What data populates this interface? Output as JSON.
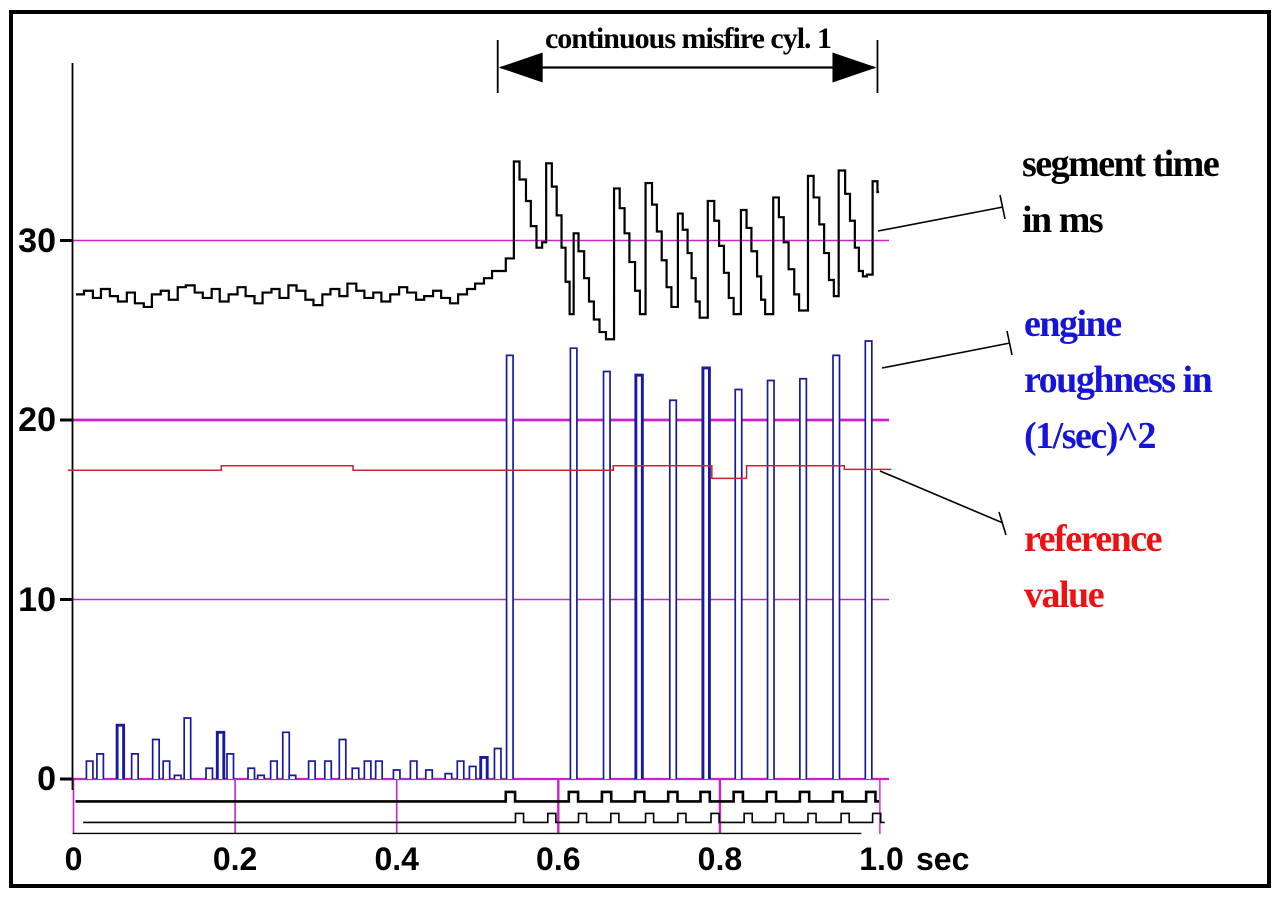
{
  "annotation": {
    "text": "continuous misfire cyl. 1"
  },
  "axes": {
    "x_unit": "sec",
    "x_ticks": [
      {
        "t": 0,
        "label": "0"
      },
      {
        "t": 0.2,
        "label": "0.2"
      },
      {
        "t": 0.4,
        "label": "0.4"
      },
      {
        "t": 0.6,
        "label": "0.6"
      },
      {
        "t": 0.8,
        "label": "0.8"
      },
      {
        "t": 1.0,
        "label": "1.0"
      }
    ],
    "y_ticks": [
      {
        "v": 0,
        "label": "0"
      },
      {
        "v": 10,
        "label": "10"
      },
      {
        "v": 20,
        "label": "20"
      },
      {
        "v": 30,
        "label": "30"
      }
    ]
  },
  "labels": [
    {
      "id": "segment-time",
      "color": "#000000",
      "lines": [
        "segment time",
        "in ms"
      ]
    },
    {
      "id": "engine-roughness",
      "color": "#1414dd",
      "lines": [
        "engine",
        "roughness in",
        "(1/sec)^2"
      ]
    },
    {
      "id": "reference-value",
      "color": "#ee1111",
      "lines": [
        "reference",
        "value"
      ]
    }
  ],
  "colors": {
    "grid": "#cc22cc",
    "segment_time": "#000000",
    "engine_roughness": "#1a1a9e",
    "reference": "#cc2233",
    "trigger_trace": "#000000"
  },
  "chart_data": {
    "type": "line",
    "title": "",
    "xlabel": "sec",
    "annotations": [
      "continuous misfire cyl. 1"
    ],
    "annotation_span_t": [
      0.525,
      0.995
    ],
    "x_range": [
      0,
      1.0
    ],
    "y_range": [
      -3.2,
      38
    ],
    "grid": {
      "y_values": [
        0,
        10,
        20,
        30
      ],
      "y_widths": [
        2.2,
        1.4,
        2.8,
        1.6
      ],
      "x_tick_marks_below_zero": [
        {
          "t": 0.0,
          "w": 1.6
        },
        {
          "t": 0.2,
          "w": 1.6
        },
        {
          "t": 0.4,
          "w": 1.6
        },
        {
          "t": 0.6,
          "w": 2.4
        },
        {
          "t": 0.8,
          "w": 2.4
        },
        {
          "t": 0.998,
          "w": 1.4
        }
      ]
    },
    "series": [
      {
        "name": "segment time in ms",
        "type": "step",
        "color": "#000000",
        "end_t": 0.997,
        "steps": [
          [
            0.003,
            27.0
          ],
          [
            0.013,
            27.2
          ],
          [
            0.024,
            26.8
          ],
          [
            0.034,
            27.3
          ],
          [
            0.045,
            26.9
          ],
          [
            0.055,
            26.6
          ],
          [
            0.066,
            27.1
          ],
          [
            0.076,
            26.5
          ],
          [
            0.087,
            26.3
          ],
          [
            0.097,
            27.0
          ],
          [
            0.108,
            27.2
          ],
          [
            0.118,
            26.7
          ],
          [
            0.129,
            27.4
          ],
          [
            0.139,
            27.5
          ],
          [
            0.15,
            27.1
          ],
          [
            0.16,
            26.8
          ],
          [
            0.171,
            27.3
          ],
          [
            0.181,
            26.6
          ],
          [
            0.192,
            27.0
          ],
          [
            0.203,
            27.4
          ],
          [
            0.213,
            26.9
          ],
          [
            0.224,
            26.5
          ],
          [
            0.234,
            27.1
          ],
          [
            0.245,
            27.3
          ],
          [
            0.255,
            26.8
          ],
          [
            0.266,
            27.5
          ],
          [
            0.276,
            27.2
          ],
          [
            0.287,
            26.7
          ],
          [
            0.297,
            26.4
          ],
          [
            0.308,
            27.0
          ],
          [
            0.318,
            27.3
          ],
          [
            0.329,
            26.9
          ],
          [
            0.339,
            27.6
          ],
          [
            0.35,
            27.2
          ],
          [
            0.36,
            26.8
          ],
          [
            0.371,
            27.1
          ],
          [
            0.381,
            26.6
          ],
          [
            0.392,
            27.0
          ],
          [
            0.403,
            27.4
          ],
          [
            0.413,
            27.1
          ],
          [
            0.424,
            26.7
          ],
          [
            0.434,
            26.9
          ],
          [
            0.445,
            27.2
          ],
          [
            0.455,
            26.8
          ],
          [
            0.466,
            26.5
          ],
          [
            0.476,
            27.0
          ],
          [
            0.487,
            27.3
          ],
          [
            0.497,
            27.6
          ],
          [
            0.508,
            27.9
          ],
          [
            0.518,
            28.3
          ],
          [
            0.535,
            29.0
          ],
          [
            0.545,
            34.4
          ],
          [
            0.552,
            33.4
          ],
          [
            0.56,
            32.2
          ],
          [
            0.566,
            30.8
          ],
          [
            0.573,
            29.6
          ],
          [
            0.58,
            29.9
          ],
          [
            0.585,
            34.3
          ],
          [
            0.592,
            33.0
          ],
          [
            0.598,
            31.4
          ],
          [
            0.604,
            29.6
          ],
          [
            0.609,
            27.7
          ],
          [
            0.614,
            25.9
          ],
          [
            0.619,
            30.4
          ],
          [
            0.625,
            29.4
          ],
          [
            0.632,
            27.9
          ],
          [
            0.638,
            26.6
          ],
          [
            0.644,
            25.6
          ],
          [
            0.651,
            24.9
          ],
          [
            0.659,
            24.5
          ],
          [
            0.669,
            32.9
          ],
          [
            0.676,
            31.8
          ],
          [
            0.682,
            30.4
          ],
          [
            0.688,
            28.8
          ],
          [
            0.695,
            27.2
          ],
          [
            0.701,
            25.9
          ],
          [
            0.708,
            33.2
          ],
          [
            0.716,
            32.0
          ],
          [
            0.722,
            30.5
          ],
          [
            0.728,
            28.9
          ],
          [
            0.734,
            27.4
          ],
          [
            0.74,
            26.3
          ],
          [
            0.748,
            31.5
          ],
          [
            0.754,
            30.6
          ],
          [
            0.76,
            29.3
          ],
          [
            0.765,
            27.9
          ],
          [
            0.77,
            26.6
          ],
          [
            0.775,
            25.7
          ],
          [
            0.785,
            32.2
          ],
          [
            0.793,
            31.1
          ],
          [
            0.799,
            29.7
          ],
          [
            0.805,
            28.2
          ],
          [
            0.811,
            26.8
          ],
          [
            0.817,
            25.9
          ],
          [
            0.826,
            31.7
          ],
          [
            0.833,
            30.7
          ],
          [
            0.839,
            29.4
          ],
          [
            0.846,
            28.0
          ],
          [
            0.851,
            26.7
          ],
          [
            0.856,
            25.9
          ],
          [
            0.866,
            32.4
          ],
          [
            0.873,
            31.3
          ],
          [
            0.879,
            29.9
          ],
          [
            0.885,
            28.4
          ],
          [
            0.892,
            27.0
          ],
          [
            0.898,
            26.1
          ],
          [
            0.909,
            33.6
          ],
          [
            0.916,
            32.4
          ],
          [
            0.923,
            30.9
          ],
          [
            0.929,
            29.3
          ],
          [
            0.935,
            27.8
          ],
          [
            0.941,
            26.9
          ],
          [
            0.947,
            33.9
          ],
          [
            0.955,
            32.6
          ],
          [
            0.961,
            31.1
          ],
          [
            0.967,
            29.6
          ],
          [
            0.972,
            28.3
          ],
          [
            0.977,
            28.0
          ],
          [
            0.982,
            28.1
          ],
          [
            0.989,
            33.3
          ],
          [
            0.995,
            32.7
          ]
        ]
      },
      {
        "name": "engine roughness in (1/sec)^2",
        "type": "bar",
        "color": "#1a1a9e",
        "bar_note": "[t, value, heavy_outline_flag]",
        "bars": [
          [
            0.02,
            1.0,
            0
          ],
          [
            0.033,
            1.4,
            0
          ],
          [
            0.058,
            3.0,
            1
          ],
          [
            0.076,
            1.4,
            0
          ],
          [
            0.102,
            2.2,
            0
          ],
          [
            0.115,
            1.0,
            0
          ],
          [
            0.129,
            0.2,
            0
          ],
          [
            0.141,
            3.4,
            0
          ],
          [
            0.168,
            0.6,
            0
          ],
          [
            0.182,
            2.6,
            1
          ],
          [
            0.194,
            1.4,
            0
          ],
          [
            0.22,
            0.6,
            0
          ],
          [
            0.232,
            0.2,
            0
          ],
          [
            0.248,
            1.0,
            0
          ],
          [
            0.263,
            2.6,
            0
          ],
          [
            0.271,
            0.2,
            0
          ],
          [
            0.295,
            1.0,
            0
          ],
          [
            0.315,
            1.0,
            0
          ],
          [
            0.333,
            2.2,
            0
          ],
          [
            0.349,
            0.6,
            0
          ],
          [
            0.364,
            1.0,
            0
          ],
          [
            0.378,
            1.0,
            0
          ],
          [
            0.4,
            0.5,
            0
          ],
          [
            0.421,
            1.0,
            0
          ],
          [
            0.44,
            0.5,
            0
          ],
          [
            0.464,
            0.3,
            0
          ],
          [
            0.479,
            1.0,
            0
          ],
          [
            0.494,
            0.7,
            0
          ],
          [
            0.508,
            1.2,
            1
          ],
          [
            0.525,
            1.7,
            0
          ],
          [
            0.54,
            23.6,
            0
          ],
          [
            0.619,
            24.0,
            0
          ],
          [
            0.66,
            22.7,
            0
          ],
          [
            0.7,
            22.5,
            1
          ],
          [
            0.742,
            21.1,
            0
          ],
          [
            0.783,
            22.9,
            1
          ],
          [
            0.823,
            21.7,
            0
          ],
          [
            0.863,
            22.2,
            0
          ],
          [
            0.903,
            22.3,
            0
          ],
          [
            0.944,
            23.6,
            0
          ],
          [
            0.984,
            24.4,
            0
          ]
        ]
      },
      {
        "name": "reference value",
        "type": "step",
        "color": "#cc2233",
        "end_t": 1.012,
        "steps": [
          [
            -0.007,
            17.2
          ],
          [
            0.183,
            17.45
          ],
          [
            0.346,
            17.2
          ],
          [
            0.668,
            17.45
          ],
          [
            0.79,
            16.75
          ],
          [
            0.833,
            17.45
          ],
          [
            0.954,
            17.25
          ]
        ]
      },
      {
        "name": "trigger trace upper",
        "type": "pulse",
        "color": "#000000",
        "baseline_v": -1.25,
        "high_v": -0.72,
        "t_start": 0.0025,
        "t_end": 0.997,
        "pulse_w": 0.0115,
        "stroke": 2.6,
        "times": [
          0.535,
          0.613,
          0.654,
          0.695,
          0.736,
          0.776,
          0.817,
          0.858,
          0.899,
          0.94,
          0.981
        ]
      },
      {
        "name": "trigger trace lower",
        "type": "pulse",
        "color": "#000000",
        "baseline_v": -2.42,
        "high_v": -1.92,
        "t_start": 0.012,
        "t_end": 1.004,
        "pulse_w": 0.01,
        "stroke": 1.6,
        "times": [
          0.547,
          0.587,
          0.625,
          0.665,
          0.708,
          0.748,
          0.789,
          0.83,
          0.869,
          0.909,
          0.95,
          0.989
        ]
      },
      {
        "name": "bottom rule",
        "type": "rule",
        "color": "#000000",
        "v": -3.03,
        "t_start": -0.001,
        "t_end": 0.975,
        "stroke": 1.4
      }
    ]
  }
}
